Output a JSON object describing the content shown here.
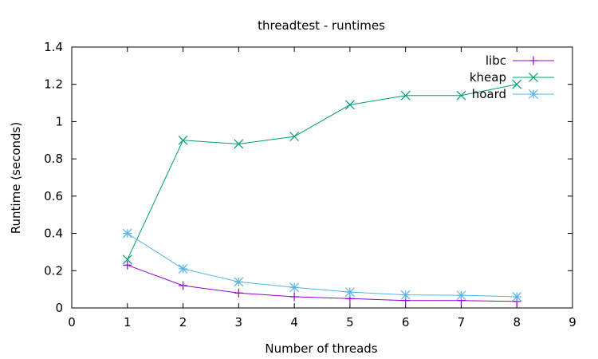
{
  "chart_data": {
    "type": "line",
    "title": "threadtest - runtimes",
    "xlabel": "Number of threads",
    "ylabel": "Runtime (seconds)",
    "xlim": [
      0,
      9
    ],
    "ylim": [
      0,
      1.4
    ],
    "xticks": [
      0,
      1,
      2,
      3,
      4,
      5,
      6,
      7,
      8,
      9
    ],
    "yticks": [
      0,
      0.2,
      0.4,
      0.6,
      0.8,
      1,
      1.2,
      1.4
    ],
    "ytick_labels": [
      "0",
      "0.2",
      "0.4",
      "0.6",
      "0.8",
      "1",
      "1.2",
      "1.4"
    ],
    "grid": false,
    "legend_position": "top-right",
    "x": [
      1,
      2,
      3,
      4,
      5,
      6,
      7,
      8
    ],
    "series": [
      {
        "name": "libc",
        "marker": "plus",
        "color": "#9400D3",
        "values": [
          0.23,
          0.12,
          0.08,
          0.06,
          0.05,
          0.04,
          0.04,
          0.035
        ]
      },
      {
        "name": "kheap",
        "marker": "cross",
        "color": "#009E73",
        "values": [
          0.26,
          0.9,
          0.88,
          0.92,
          1.09,
          1.14,
          1.14,
          1.2
        ]
      },
      {
        "name": "hoard",
        "marker": "star",
        "color": "#56B4E9",
        "values": [
          0.4,
          0.21,
          0.14,
          0.11,
          0.085,
          0.07,
          0.068,
          0.06
        ]
      }
    ]
  }
}
